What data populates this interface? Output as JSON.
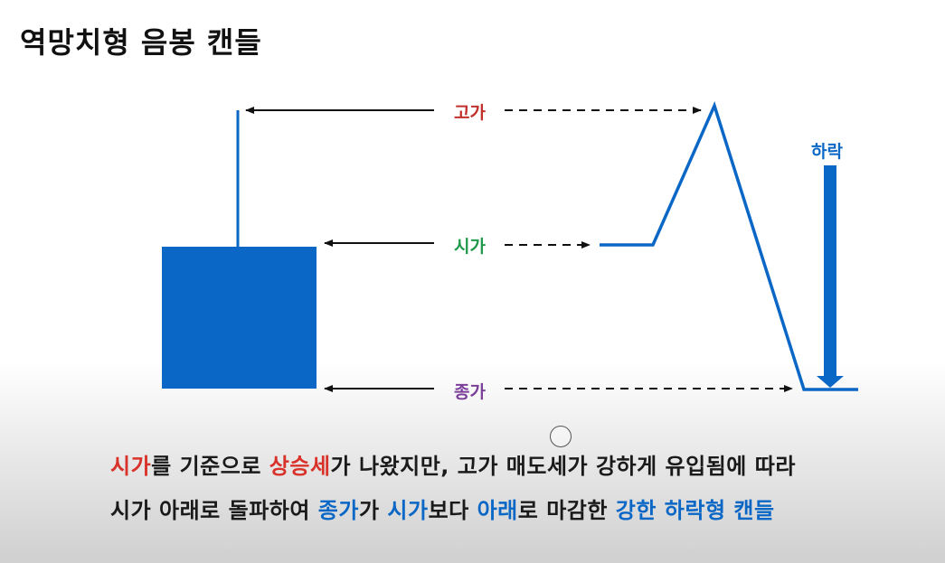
{
  "title": "역망치형 음봉 캔들",
  "labels": {
    "high": "고가",
    "open": "시가",
    "close": "종가",
    "fall": "하락"
  },
  "colors": {
    "candle": "#0a67c6",
    "high_label": "#c0312b",
    "open_label": "#1f9a4a",
    "close_label": "#7b3f9a",
    "fall_label": "#0a67c6",
    "red_emphasis": "#d8322a",
    "blue_emphasis": "#0a67c6",
    "caption_text": "#1a1a1a"
  },
  "caption": {
    "line1": [
      {
        "text": "시가",
        "color": "red"
      },
      {
        "text": "를 기준으로 ",
        "color": "default"
      },
      {
        "text": "상승세",
        "color": "red"
      },
      {
        "text": "가 나왔지만, 고가 매도세가 강하게 유입됨에 따라",
        "color": "default"
      }
    ],
    "line2": [
      {
        "text": "시가 아래로 돌파하여 ",
        "color": "default"
      },
      {
        "text": "종가",
        "color": "blue"
      },
      {
        "text": "가 ",
        "color": "default"
      },
      {
        "text": "시가",
        "color": "blue"
      },
      {
        "text": "보다 ",
        "color": "default"
      },
      {
        "text": "아래",
        "color": "blue"
      },
      {
        "text": "로 마감한 ",
        "color": "default"
      },
      {
        "text": "강한 하락형 캔들",
        "color": "blue"
      }
    ]
  }
}
